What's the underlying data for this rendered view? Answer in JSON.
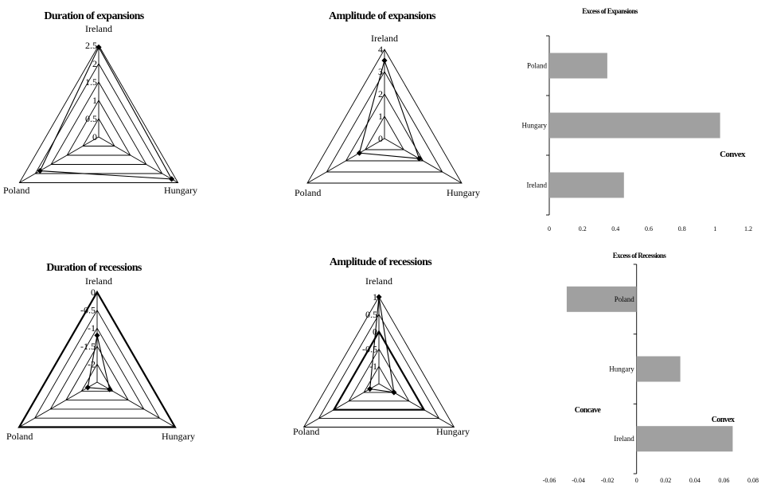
{
  "colors": {
    "bar": "#a0a0a0",
    "line": "#000000",
    "background": "#ffffff"
  },
  "chart_data": [
    {
      "id": "dur-exp",
      "type": "radar",
      "title": "Duration of expansions",
      "axes": [
        "Ireland",
        "Hungary",
        "Poland"
      ],
      "rlim": [
        0,
        2.5
      ],
      "ticks": [
        0,
        0.5,
        1,
        1.5,
        2,
        2.5
      ],
      "tick_labels": [
        "0",
        "0.5",
        "1",
        "1.5",
        "2",
        "2.5"
      ],
      "values": [
        2.45,
        2.3,
        1.85
      ]
    },
    {
      "id": "amp-exp",
      "type": "radar",
      "title": "Amplitude of expansions",
      "axes": [
        "Ireland",
        "Hungary",
        "Poland"
      ],
      "rlim": [
        0,
        4
      ],
      "ticks": [
        0,
        1,
        2,
        3,
        4
      ],
      "tick_labels": [
        "0",
        "1",
        "2",
        "3",
        "4"
      ],
      "values": [
        3.5,
        1.8,
        1.3
      ]
    },
    {
      "id": "exc-exp",
      "type": "bar",
      "orientation": "horizontal",
      "title": "Excess of Expansions",
      "categories": [
        "Poland",
        "Hungary",
        "Ireland"
      ],
      "values": [
        0.35,
        1.03,
        0.45
      ],
      "xlim": [
        0,
        1.2
      ],
      "xticks": [
        0,
        0.2,
        0.4,
        0.6,
        0.8,
        1,
        1.2
      ],
      "xtick_labels": [
        "0",
        "0.2",
        "0.4",
        "0.6",
        "0.8",
        "1",
        "1.2"
      ],
      "annotations": [
        "Convex"
      ]
    },
    {
      "id": "dur-rec",
      "type": "radar",
      "title": "Duration of recessions",
      "axes": [
        "Ireland",
        "Hungary",
        "Poland"
      ],
      "rlim": [
        -2.5,
        0
      ],
      "ticks": [
        -2.5,
        -2,
        -1.5,
        -1,
        -0.5,
        0
      ],
      "tick_labels": [
        "",
        "-2",
        "-1.5",
        "-1",
        "-0.5",
        "0"
      ],
      "values": [
        -1.2,
        -2.1,
        -2.2
      ]
    },
    {
      "id": "amp-rec",
      "type": "radar",
      "title": "Amplitude of recessions",
      "axes": [
        "Ireland",
        "Hungary",
        "Poland"
      ],
      "rlim": [
        -1.5,
        1
      ],
      "ticks": [
        -1.5,
        -1,
        -0.5,
        0,
        0.5,
        1
      ],
      "tick_labels": [
        "",
        "-1",
        "-0.5",
        "0",
        "0.5",
        "1"
      ],
      "values": [
        1,
        -1,
        -1.2
      ]
    },
    {
      "id": "exc-rec",
      "type": "bar",
      "orientation": "horizontal",
      "title": "Excess of Recessions",
      "categories": [
        "Poland",
        "Hungary",
        "Ireland"
      ],
      "values": [
        -0.048,
        0.03,
        0.066
      ],
      "xlim": [
        -0.06,
        0.08
      ],
      "xticks": [
        -0.06,
        -0.04,
        -0.02,
        0,
        0.02,
        0.04,
        0.06,
        0.08
      ],
      "xtick_labels": [
        "-0.06",
        "-0.04",
        "-0.02",
        "0",
        "0.02",
        "0.04",
        "0.06",
        "0.08"
      ],
      "annotations": [
        "Concave",
        "Convex"
      ]
    }
  ]
}
